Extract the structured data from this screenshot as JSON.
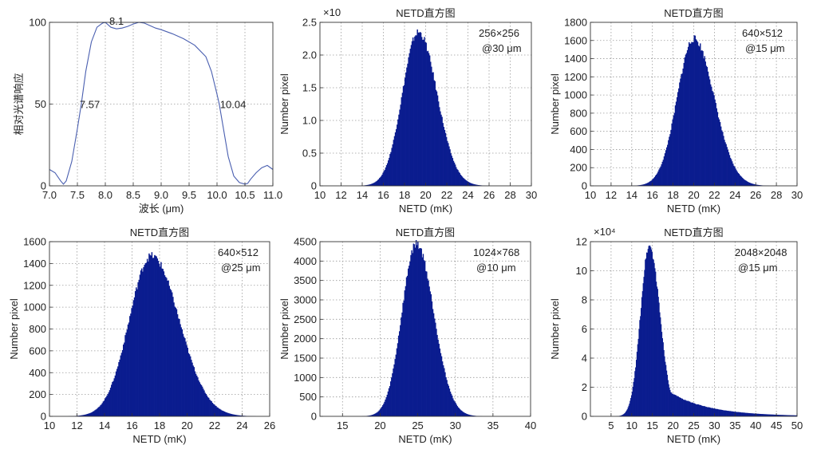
{
  "chart_data": [
    {
      "id": "spectral",
      "type": "line",
      "title": "",
      "xlabel": "波长 (μm)",
      "ylabel": "相对光谱响应",
      "xlim": [
        7.0,
        11.0
      ],
      "ylim": [
        0,
        100
      ],
      "xticks": [
        "7.0",
        "7.5",
        "8.0",
        "8.5",
        "9.0",
        "9.5",
        "10.0",
        "10.5",
        "11.0"
      ],
      "yticks": [
        "0",
        "50",
        "100"
      ],
      "grid": true,
      "color": "#4a5fb0",
      "annotations": [
        {
          "text": "8.1",
          "x": 8.1,
          "y": 100
        },
        {
          "text": "7.57",
          "x": 7.57,
          "y": 50
        },
        {
          "text": "10.04",
          "x": 10.04,
          "y": 50
        }
      ],
      "x": [
        7.0,
        7.1,
        7.2,
        7.25,
        7.3,
        7.4,
        7.5,
        7.57,
        7.65,
        7.75,
        7.85,
        7.95,
        8.0,
        8.1,
        8.2,
        8.3,
        8.4,
        8.5,
        8.6,
        8.7,
        8.8,
        8.9,
        9.0,
        9.2,
        9.4,
        9.6,
        9.8,
        9.9,
        10.0,
        10.04,
        10.1,
        10.2,
        10.3,
        10.4,
        10.5,
        10.55,
        10.6,
        10.7,
        10.8,
        10.9,
        11.0
      ],
      "y": [
        10,
        8,
        3,
        1,
        3,
        15,
        35,
        50,
        70,
        88,
        97,
        99.5,
        100,
        97,
        96,
        96.5,
        97.5,
        99,
        100,
        99.5,
        98,
        96.5,
        95.5,
        93,
        90,
        86,
        79,
        70,
        56,
        50,
        38,
        18,
        6,
        2,
        1,
        1.5,
        4,
        8,
        11,
        12.5,
        10
      ]
    },
    {
      "id": "hist1",
      "type": "bar",
      "title": "NETD直方图",
      "xlabel": "NETD (mK)",
      "ylabel": "Number pixel",
      "exponent": "×10",
      "note": [
        "256×256",
        "@30 μm"
      ],
      "xlim": [
        10,
        30
      ],
      "ylim": [
        0,
        2.5
      ],
      "xticks": [
        "10",
        "12",
        "14",
        "16",
        "18",
        "20",
        "22",
        "24",
        "26",
        "28",
        "30"
      ],
      "yticks": [
        "0",
        "0.5",
        "1.0",
        "1.5",
        "2.0",
        "2.5"
      ],
      "grid": true,
      "peak": 2.35,
      "center": 19.3,
      "sigma_left": 1.5,
      "sigma_right": 1.75,
      "bins": 240
    },
    {
      "id": "hist2",
      "type": "bar",
      "title": "NETD直方图",
      "xlabel": "NETD (mK)",
      "ylabel": "Number pixel",
      "exponent": "",
      "note": [
        "640×512",
        "@15 μm"
      ],
      "xlim": [
        10,
        30
      ],
      "ylim": [
        0,
        1800
      ],
      "xticks": [
        "10",
        "12",
        "14",
        "16",
        "18",
        "20",
        "22",
        "24",
        "26",
        "28",
        "30"
      ],
      "yticks": [
        "0",
        "200",
        "400",
        "600",
        "800",
        "1000",
        "1200",
        "1400",
        "1600",
        "1800"
      ],
      "grid": true,
      "peak": 1620,
      "center": 20.0,
      "sigma_left": 1.6,
      "sigma_right": 1.95,
      "bins": 240
    },
    {
      "id": "hist3",
      "type": "bar",
      "title": "NETD直方图",
      "xlabel": "NETD (mK)",
      "ylabel": "Number pixel",
      "exponent": "",
      "note": [
        "640×512",
        "@25 μm"
      ],
      "xlim": [
        10,
        26
      ],
      "ylim": [
        0,
        1600
      ],
      "xticks": [
        "10",
        "12",
        "14",
        "16",
        "18",
        "20",
        "22",
        "24",
        "26"
      ],
      "yticks": [
        "0",
        "200",
        "400",
        "600",
        "800",
        "1000",
        "1200",
        "1400",
        "1600"
      ],
      "grid": true,
      "peak": 1470,
      "center": 17.4,
      "sigma_left": 1.6,
      "sigma_right": 2.0,
      "bins": 240
    },
    {
      "id": "hist4",
      "type": "bar",
      "title": "NETD直方图",
      "xlabel": "NETD (mK)",
      "ylabel": "Number pixel",
      "exponent": "",
      "note": [
        "1024×768",
        "@10 μm"
      ],
      "xlim": [
        12,
        40
      ],
      "ylim": [
        0,
        4500
      ],
      "xticks": [
        "15",
        "20",
        "25",
        "30",
        "35",
        "40"
      ],
      "yticks": [
        "0",
        "500",
        "1000",
        "1500",
        "2000",
        "2500",
        "3000",
        "3500",
        "4000",
        "4500"
      ],
      "grid": true,
      "peak": 4450,
      "center": 24.8,
      "sigma_left": 1.9,
      "sigma_right": 2.3,
      "bins": 240
    },
    {
      "id": "hist5",
      "type": "bar",
      "title": "NETD直方图",
      "xlabel": "NETD (mK)",
      "ylabel": "Number pixel",
      "exponent": "×10⁴",
      "note": [
        "2048×2048",
        "@15 μm"
      ],
      "xlim": [
        0,
        50
      ],
      "ylim": [
        0,
        12
      ],
      "xticks": [
        "5",
        "10",
        "15",
        "20",
        "25",
        "30",
        "35",
        "40",
        "45",
        "50"
      ],
      "yticks": [
        "0",
        "2",
        "4",
        "6",
        "8",
        "10",
        "12"
      ],
      "grid": true,
      "peak": 11.7,
      "center": 14.2,
      "sigma_left": 2.1,
      "sigma_right": 2.6,
      "tail": true,
      "bins": 300
    }
  ]
}
